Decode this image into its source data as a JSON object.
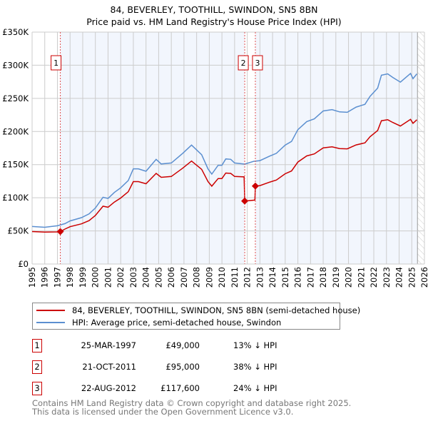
{
  "chart_data": {
    "type": "line",
    "title": "84, BEVERLEY, TOOTHILL, SWINDON, SN5 8BN",
    "subtitle": "Price paid vs. HM Land Registry's House Price Index (HPI)",
    "xlim": [
      1995,
      2026
    ],
    "ylim": [
      0,
      350000
    ],
    "x_ticks": [
      "1995",
      "1996",
      "1997",
      "1998",
      "1999",
      "2000",
      "2001",
      "2002",
      "2003",
      "2004",
      "2005",
      "2006",
      "2007",
      "2008",
      "2009",
      "2010",
      "2011",
      "2012",
      "2013",
      "2014",
      "2015",
      "2016",
      "2017",
      "2018",
      "2019",
      "2020",
      "2021",
      "2022",
      "2023",
      "2024",
      "2025",
      "2026"
    ],
    "y_ticks": [
      {
        "v": 0,
        "label": "£0"
      },
      {
        "v": 50000,
        "label": "£50K"
      },
      {
        "v": 100000,
        "label": "£100K"
      },
      {
        "v": 150000,
        "label": "£150K"
      },
      {
        "v": 200000,
        "label": "£200K"
      },
      {
        "v": 250000,
        "label": "£250K"
      },
      {
        "v": 300000,
        "label": "£300K"
      },
      {
        "v": 350000,
        "label": "£350K"
      }
    ],
    "grid": true,
    "data_end": 2025.45,
    "series": [
      {
        "name": "84, BEVERLEY, TOOTHILL, SWINDON, SN5 8BN (semi-detached house)",
        "color": "#cc0000",
        "x": [
          1995,
          1996,
          1997,
          1997.23,
          1997.6,
          1998,
          1998.9,
          1999.5,
          2000,
          2000.6,
          2001,
          2001.5,
          2002,
          2002.6,
          2003,
          2003.4,
          2004,
          2004.8,
          2005.2,
          2006,
          2006.9,
          2007.6,
          2008.4,
          2008.9,
          2009.2,
          2009.7,
          2010,
          2010.3,
          2010.7,
          2011,
          2011.75,
          2011.8,
          2012.6,
          2012.64,
          2013,
          2013.8,
          2014.3,
          2015,
          2015.5,
          2016,
          2016.7,
          2017.3,
          2018,
          2018.7,
          2019.3,
          2019.9,
          2020.6,
          2021.3,
          2021.7,
          2022.3,
          2022.6,
          2023.1,
          2023.5,
          2024.1,
          2024.9,
          2025.1,
          2025.4
        ],
        "values": [
          49000,
          48100,
          48500,
          49000,
          52800,
          56300,
          60600,
          65500,
          73200,
          87200,
          85700,
          93500,
          99600,
          109100,
          124400,
          124400,
          121200,
          136800,
          130800,
          132100,
          144600,
          155400,
          142900,
          124400,
          117500,
          129000,
          129000,
          137300,
          136800,
          132100,
          131500,
          95000,
          96500,
          117600,
          118400,
          123700,
          126800,
          136200,
          140400,
          153900,
          163200,
          166200,
          175300,
          176800,
          174300,
          173800,
          179700,
          182900,
          192000,
          201500,
          216300,
          217800,
          213700,
          208300,
          218300,
          212400,
          217800
        ]
      },
      {
        "name": "HPI: Average price, semi-detached house, Swindon",
        "color": "#5b8fd0",
        "x": [
          1995,
          1996,
          1997,
          1997.6,
          1998,
          1998.9,
          1999.5,
          2000,
          2000.6,
          2001,
          2001.5,
          2002,
          2002.6,
          2003,
          2003.4,
          2004,
          2004.8,
          2005.2,
          2006,
          2006.9,
          2007.6,
          2008.4,
          2008.9,
          2009.2,
          2009.7,
          2010,
          2010.3,
          2010.7,
          2011,
          2011.8,
          2012.5,
          2013,
          2013.8,
          2014.3,
          2015,
          2015.5,
          2016,
          2016.7,
          2017.3,
          2018,
          2018.7,
          2019.3,
          2019.9,
          2020.6,
          2021.3,
          2021.7,
          2022.3,
          2022.6,
          2023.1,
          2023.5,
          2024.1,
          2024.9,
          2025.1,
          2025.4
        ],
        "values": [
          56600,
          55500,
          57700,
          61000,
          65000,
          70000,
          75600,
          84500,
          100700,
          99000,
          108000,
          115000,
          126000,
          143700,
          143700,
          140000,
          158000,
          151000,
          152500,
          167000,
          179500,
          165000,
          143600,
          135700,
          149000,
          149000,
          158600,
          158000,
          152500,
          150800,
          155000,
          156000,
          163000,
          167000,
          179500,
          185000,
          202800,
          215000,
          219000,
          231000,
          233000,
          229600,
          229000,
          236800,
          241000,
          253000,
          265500,
          285000,
          287000,
          281600,
          274500,
          287600,
          279800,
          287000
        ]
      }
    ],
    "sales": [
      {
        "id": "1",
        "x": 1997.23,
        "value": 49000,
        "date": "25-MAR-1997",
        "price": "£49,000",
        "hpi": "13% ↓ HPI"
      },
      {
        "id": "2",
        "x": 2011.8,
        "value": 95000,
        "date": "21-OCT-2011",
        "price": "£95,000",
        "hpi": "38% ↓ HPI"
      },
      {
        "id": "3",
        "x": 2012.64,
        "value": 117600,
        "date": "22-AUG-2012",
        "price": "£117,600",
        "hpi": "24% ↓ HPI"
      }
    ]
  },
  "footer": {
    "line1": "Contains HM Land Registry data © Crown copyright and database right 2025.",
    "line2": "This data is licensed under the Open Government Licence v3.0."
  }
}
